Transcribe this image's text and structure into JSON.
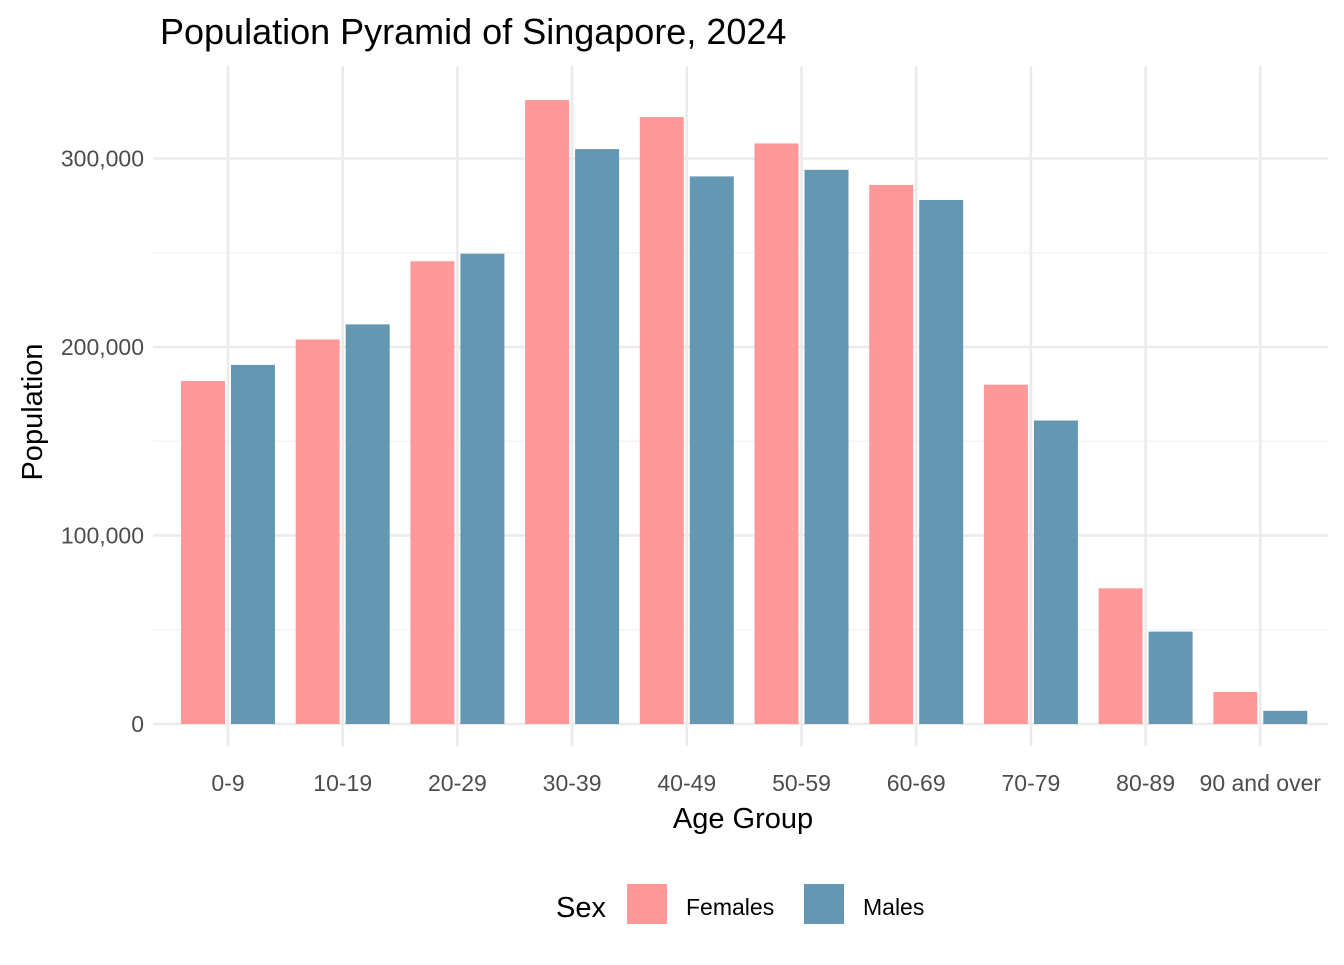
{
  "chart_data": {
    "type": "bar",
    "title": "Population Pyramid of Singapore, 2024",
    "xlabel": "Age Group",
    "ylabel": "Population",
    "categories": [
      "0-9",
      "10-19",
      "20-29",
      "30-39",
      "40-49",
      "50-59",
      "60-69",
      "70-79",
      "80-89",
      "90 and over"
    ],
    "series": [
      {
        "name": "Females",
        "color": "#ff9999",
        "values": [
          182000,
          204000,
          245500,
          331000,
          322000,
          308000,
          286000,
          180000,
          72000,
          17000
        ]
      },
      {
        "name": "Males",
        "color": "#6497b1",
        "values": [
          190500,
          212000,
          249500,
          305000,
          290500,
          294000,
          278000,
          161000,
          49000,
          7000
        ]
      }
    ],
    "ylim": [
      0,
      345000
    ],
    "yticks": [
      0,
      100000,
      200000,
      300000
    ],
    "ytick_labels": [
      "0",
      "100,000",
      "200,000",
      "300,000"
    ],
    "grid": true,
    "legend": {
      "title": "Sex",
      "position": "bottom"
    }
  }
}
